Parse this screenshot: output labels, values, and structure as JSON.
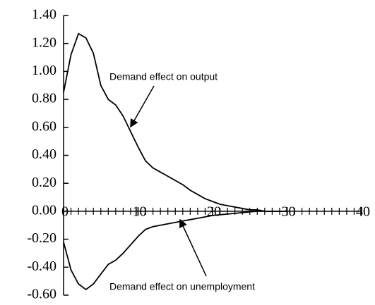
{
  "chart_data": {
    "type": "line",
    "x": [
      0,
      1,
      2,
      3,
      4,
      5,
      6,
      7,
      8,
      9,
      10,
      11,
      12,
      13,
      14,
      15,
      16,
      17,
      18,
      19,
      20,
      21,
      22,
      23,
      24,
      25,
      26,
      27,
      28,
      29,
      30
    ],
    "series": [
      {
        "color": "#000000",
        "values": [
          0.85,
          1.12,
          1.27,
          1.24,
          1.13,
          0.9,
          0.8,
          0.76,
          0.68,
          0.57,
          0.46,
          0.36,
          0.31,
          0.28,
          0.25,
          0.22,
          0.19,
          0.15,
          0.12,
          0.09,
          0.07,
          0.05,
          0.04,
          0.03,
          0.02,
          0.01,
          0.01,
          0,
          0,
          0,
          0
        ]
      },
      {
        "color": "#000000",
        "values": [
          -0.22,
          -0.42,
          -0.52,
          -0.56,
          -0.52,
          -0.45,
          -0.38,
          -0.35,
          -0.3,
          -0.24,
          -0.18,
          -0.13,
          -0.11,
          -0.1,
          -0.09,
          -0.08,
          -0.07,
          -0.06,
          -0.05,
          -0.04,
          -0.03,
          -0.025,
          -0.02,
          -0.015,
          -0.01,
          -0.005,
          0,
          0,
          0,
          0,
          0
        ]
      }
    ],
    "annotations": [
      "Demand effect on output",
      "Demand effect on unemployment"
    ],
    "xlim": [
      0,
      40
    ],
    "xticks": [
      0,
      10,
      20,
      30,
      40
    ],
    "x_minor_ticks": [
      0,
      1,
      2,
      3,
      4,
      5,
      6,
      7,
      8,
      9,
      10,
      11,
      12,
      13,
      14,
      15,
      16,
      17,
      18,
      19,
      20,
      21,
      22,
      23,
      24,
      25,
      26,
      27,
      28,
      29,
      30,
      31,
      32,
      33,
      34,
      35,
      36,
      37,
      38,
      39,
      40
    ],
    "ylim": [
      -0.6,
      1.4
    ],
    "yticks": [
      {
        "value": 1.4,
        "label": "1.40"
      },
      {
        "value": 1.2,
        "label": "1.20"
      },
      {
        "value": 1,
        "label": "1.00"
      },
      {
        "value": 0.8,
        "label": "0.80"
      },
      {
        "value": 0.6,
        "label": "0.60"
      },
      {
        "value": 0.4,
        "label": "0.40"
      },
      {
        "value": 0.2,
        "label": "0.20"
      },
      {
        "value": 0,
        "label": "0.00"
      },
      {
        "value": -0.2,
        "label": "-0.20"
      },
      {
        "value": -0.4,
        "label": "-0.40"
      },
      {
        "value": -0.6,
        "label": "-0.60"
      }
    ],
    "grid": false
  }
}
